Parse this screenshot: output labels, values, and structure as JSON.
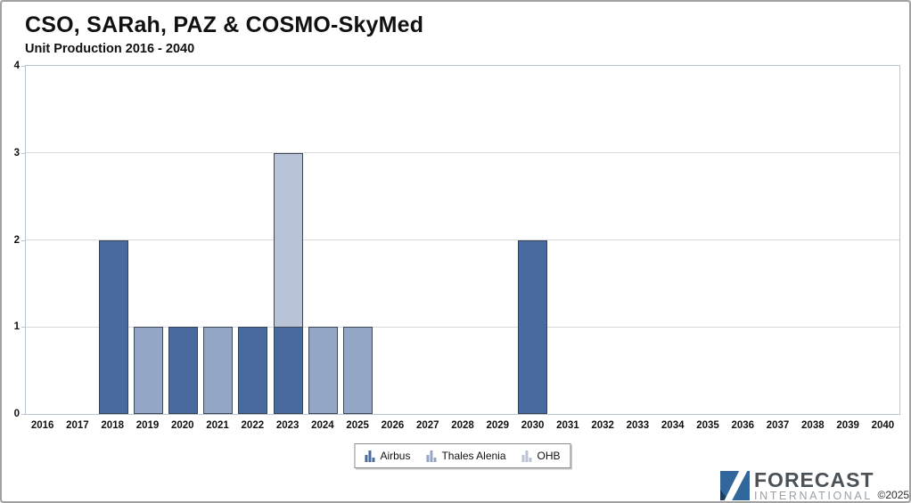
{
  "chart_data": {
    "type": "bar",
    "stacked": true,
    "title": "CSO, SARah, PAZ & COSMO-SkyMed",
    "subtitle": "Unit Production 2016 - 2040",
    "categories": [
      "2016",
      "2017",
      "2018",
      "2019",
      "2020",
      "2021",
      "2022",
      "2023",
      "2024",
      "2025",
      "2026",
      "2027",
      "2028",
      "2029",
      "2030",
      "2031",
      "2032",
      "2033",
      "2034",
      "2035",
      "2036",
      "2037",
      "2038",
      "2039",
      "2040"
    ],
    "series": [
      {
        "name": "Airbus",
        "color": "#486a9e",
        "border_color": "#344258",
        "values": [
          0,
          0,
          2,
          0,
          1,
          0,
          1,
          1,
          0,
          0,
          0,
          0,
          0,
          0,
          2,
          0,
          0,
          0,
          0,
          0,
          0,
          0,
          0,
          0,
          0
        ]
      },
      {
        "name": "Thales Alenia",
        "color": "#94a6c6",
        "border_color": "#3d4756",
        "values": [
          0,
          0,
          0,
          1,
          0,
          1,
          0,
          0,
          1,
          1,
          0,
          0,
          0,
          0,
          0,
          0,
          0,
          0,
          0,
          0,
          0,
          0,
          0,
          0,
          0
        ]
      },
      {
        "name": "OHB",
        "color": "#b8c3d8",
        "border_color": "#3d4756",
        "values": [
          0,
          0,
          0,
          0,
          0,
          0,
          0,
          2,
          0,
          0,
          0,
          0,
          0,
          0,
          0,
          0,
          0,
          0,
          0,
          0,
          0,
          0,
          0,
          0,
          0
        ]
      }
    ],
    "xlabel": "",
    "ylabel": "",
    "ylim": [
      0,
      4
    ],
    "yticks": [
      0,
      1,
      2,
      3,
      4
    ],
    "grid": true,
    "legend_position": "bottom"
  },
  "colors": {
    "gridline": "#d9d9d9",
    "plot_border": "#b9c5d1",
    "outer_border": "#a1a1a1",
    "logo_blue": "#32679c",
    "logo_navy": "#1d3c5f"
  },
  "logo": {
    "line1": "FORECAST",
    "line2": "INTERNATIONAL",
    "copyright": "©2025"
  }
}
